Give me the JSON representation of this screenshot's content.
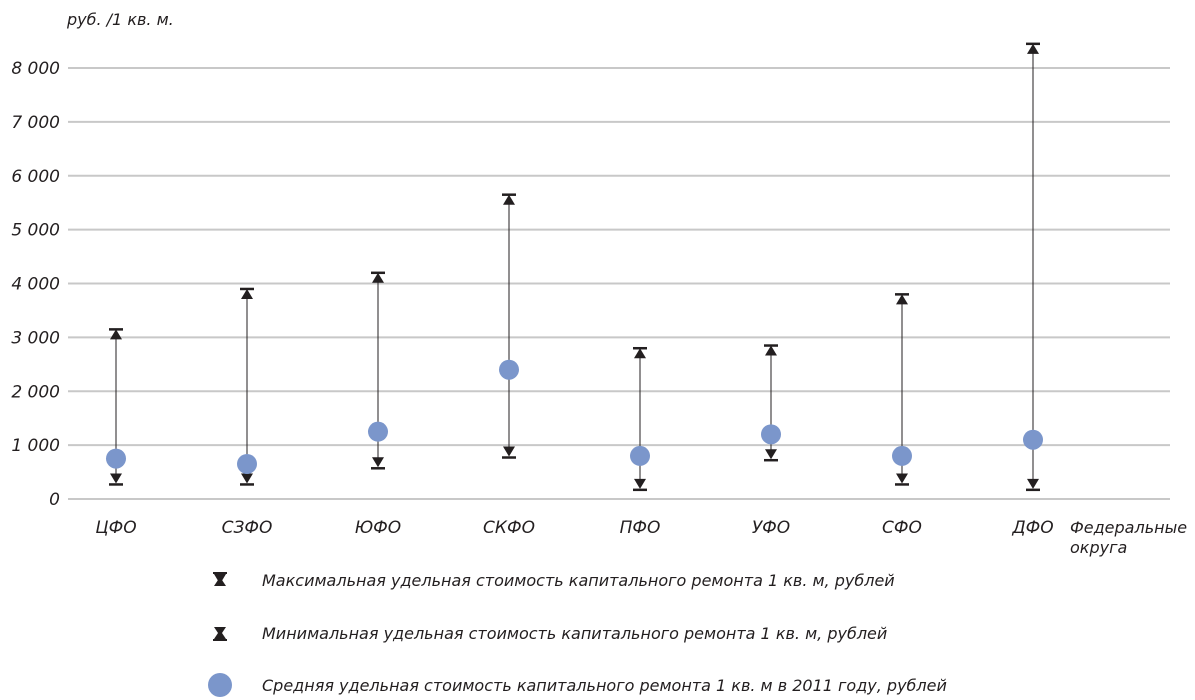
{
  "chart_data": {
    "type": "scatter",
    "y_unit_label": "руб. /1 кв. м.",
    "x_axis_title": [
      "Федеральные",
      "округа"
    ],
    "categories": [
      "ЦФО",
      "СЗФО",
      "ЮФО",
      "СКФО",
      "ПФО",
      "УФО",
      "СФО",
      "ДФО"
    ],
    "ylim": [
      0,
      8500
    ],
    "yticks": [
      0,
      1000,
      2000,
      3000,
      4000,
      5000,
      6000,
      7000,
      8000
    ],
    "ytick_labels": [
      "0",
      "1 000",
      "2 000",
      "3 000",
      "4 000",
      "5 000",
      "6 000",
      "7 000",
      "8 000"
    ],
    "grid": true,
    "series": [
      {
        "name": "Максимальная удельная стоимость капитального ремонта 1 кв. м, рублей",
        "marker": "triangle-up",
        "values": [
          3000,
          3750,
          4050,
          5500,
          2650,
          2700,
          3650,
          8300
        ]
      },
      {
        "name": "Минимальная удельная стоимость капитального ремонта 1 кв. м, рублей",
        "marker": "triangle-down",
        "values": [
          400,
          400,
          700,
          900,
          300,
          850,
          400,
          300
        ]
      },
      {
        "name": "Средняя удельная стоимость капитального ремонта 1 кв. м в 2011 году, рублей",
        "marker": "circle",
        "values": [
          750,
          650,
          1250,
          2400,
          800,
          1200,
          800,
          1100
        ]
      }
    ],
    "colors": {
      "grid": "#c8c8c8",
      "ink": "#231f20",
      "mean": "#7b96cb"
    },
    "legend_position": "bottom"
  }
}
